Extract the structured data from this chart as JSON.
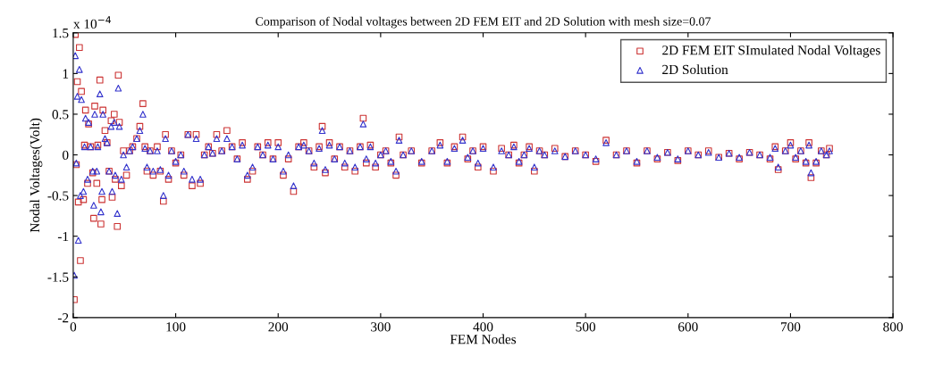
{
  "chart_data": {
    "type": "scatter",
    "title": "Comparison of Nodal voltages between 2D FEM EIT and 2D Solution with mesh size=0.07",
    "xlabel": "FEM Nodes",
    "ylabel": "Nodal Voltages(Volt)",
    "annotations": [
      "x 10$^{−4}$"
    ],
    "x": [
      1,
      2,
      3,
      4,
      5,
      6,
      7,
      8,
      10,
      11,
      12,
      14,
      15,
      17,
      19,
      20,
      21,
      23,
      24,
      26,
      27,
      28,
      29,
      31,
      33,
      35,
      37,
      38,
      40,
      41,
      43,
      44,
      45,
      47,
      49,
      52,
      55,
      58,
      62,
      65,
      68,
      70,
      72,
      75,
      78,
      82,
      85,
      88,
      90,
      93,
      96,
      100,
      105,
      108,
      112,
      116,
      120,
      124,
      128,
      132,
      136,
      140,
      145,
      150,
      155,
      160,
      165,
      170,
      175,
      180,
      185,
      190,
      195,
      200,
      205,
      210,
      215,
      220,
      225,
      230,
      235,
      240,
      243,
      246,
      250,
      255,
      260,
      265,
      270,
      275,
      280,
      283,
      286,
      290,
      295,
      300,
      305,
      310,
      315,
      318,
      322,
      330,
      340,
      350,
      358,
      365,
      372,
      380,
      385,
      390,
      395,
      400,
      410,
      418,
      425,
      430,
      435,
      440,
      445,
      450,
      455,
      460,
      470,
      480,
      490,
      500,
      510,
      520,
      530,
      540,
      550,
      560,
      570,
      580,
      590,
      600,
      610,
      620,
      630,
      640,
      650,
      660,
      670,
      680,
      685,
      688,
      695,
      700,
      705,
      710,
      715,
      718,
      720,
      725,
      730,
      735,
      738
    ],
    "series": [
      {
        "name": "2D FEM EIT SImulated Nodal Voltages",
        "color": "#cc3333",
        "marker": "square",
        "values": [
          -1.78,
          1.48,
          -0.12,
          0.9,
          -0.58,
          1.32,
          -1.3,
          0.78,
          -0.55,
          0.12,
          0.55,
          -0.35,
          0.38,
          0.1,
          -0.22,
          -0.78,
          0.6,
          -0.35,
          0.12,
          0.92,
          -0.85,
          -0.55,
          0.55,
          0.3,
          0.15,
          -0.2,
          0.42,
          -0.52,
          0.5,
          -0.3,
          -0.88,
          0.98,
          0.4,
          -0.38,
          0.05,
          -0.25,
          0.05,
          0.1,
          0.2,
          0.35,
          0.63,
          0.1,
          -0.2,
          0.05,
          -0.25,
          0.1,
          -0.2,
          -0.57,
          0.25,
          -0.3,
          0.05,
          -0.1,
          0.0,
          -0.25,
          0.25,
          -0.38,
          0.25,
          -0.35,
          0.0,
          0.1,
          0.02,
          0.25,
          0.05,
          0.3,
          0.1,
          -0.05,
          0.15,
          -0.3,
          -0.2,
          0.1,
          0.0,
          0.15,
          -0.05,
          0.15,
          -0.25,
          -0.05,
          -0.45,
          0.1,
          0.15,
          0.05,
          -0.15,
          0.1,
          0.35,
          -0.22,
          0.15,
          -0.05,
          0.1,
          -0.15,
          0.05,
          -0.2,
          0.1,
          0.45,
          -0.1,
          0.12,
          -0.15,
          0.0,
          0.05,
          -0.1,
          -0.25,
          0.22,
          0.0,
          0.05,
          -0.1,
          0.05,
          0.15,
          -0.1,
          0.1,
          0.22,
          -0.05,
          0.05,
          -0.15,
          0.1,
          -0.2,
          0.08,
          0.0,
          0.12,
          -0.1,
          0.0,
          0.1,
          -0.2,
          0.05,
          0.0,
          0.08,
          -0.02,
          0.05,
          0.0,
          -0.08,
          0.18,
          0.0,
          0.05,
          -0.1,
          0.05,
          -0.05,
          0.03,
          -0.07,
          0.05,
          0.0,
          0.05,
          -0.03,
          0.02,
          -0.05,
          0.03,
          0.0,
          -0.05,
          0.1,
          -0.18,
          0.05,
          0.15,
          -0.05,
          0.05,
          -0.1,
          0.15,
          -0.28,
          -0.1,
          0.05,
          0.0,
          0.08
        ]
      },
      {
        "name": "2D Solution",
        "color": "#3333cc",
        "marker": "triangle",
        "values": [
          -1.48,
          1.22,
          -0.1,
          0.72,
          -1.05,
          1.05,
          -0.5,
          0.68,
          -0.45,
          0.1,
          0.45,
          -0.3,
          0.4,
          0.1,
          -0.2,
          -0.62,
          0.5,
          -0.2,
          0.1,
          0.75,
          -0.7,
          -0.45,
          0.5,
          0.2,
          0.15,
          -0.2,
          0.35,
          -0.45,
          0.4,
          -0.25,
          -0.72,
          0.82,
          0.35,
          -0.3,
          0.0,
          -0.15,
          0.05,
          0.1,
          0.2,
          0.3,
          0.5,
          0.08,
          -0.15,
          0.05,
          -0.2,
          0.05,
          -0.18,
          -0.5,
          0.2,
          -0.25,
          0.05,
          -0.08,
          0.0,
          -0.2,
          0.25,
          -0.3,
          0.2,
          -0.3,
          0.0,
          0.1,
          0.02,
          0.2,
          0.05,
          0.2,
          0.1,
          -0.05,
          0.12,
          -0.25,
          -0.15,
          0.1,
          0.0,
          0.12,
          -0.05,
          0.1,
          -0.2,
          0.0,
          -0.38,
          0.1,
          0.12,
          0.05,
          -0.1,
          0.08,
          0.3,
          -0.18,
          0.12,
          -0.05,
          0.1,
          -0.1,
          0.05,
          -0.15,
          0.1,
          0.38,
          -0.05,
          0.1,
          -0.1,
          0.0,
          0.05,
          -0.08,
          -0.2,
          0.18,
          0.0,
          0.05,
          -0.08,
          0.05,
          0.12,
          -0.08,
          0.08,
          0.18,
          -0.03,
          0.05,
          -0.1,
          0.08,
          -0.15,
          0.05,
          0.0,
          0.1,
          -0.08,
          0.0,
          0.08,
          -0.15,
          0.05,
          0.0,
          0.05,
          -0.02,
          0.05,
          0.0,
          -0.05,
          0.15,
          0.0,
          0.05,
          -0.08,
          0.05,
          -0.03,
          0.03,
          -0.05,
          0.05,
          0.0,
          0.03,
          -0.03,
          0.02,
          -0.03,
          0.03,
          0.0,
          -0.03,
          0.08,
          -0.15,
          0.05,
          0.12,
          -0.03,
          0.05,
          -0.08,
          0.12,
          -0.22,
          -0.08,
          0.05,
          0.0,
          0.05
        ]
      }
    ],
    "xlim": [
      0,
      800
    ],
    "xticks": [
      0,
      100,
      200,
      300,
      400,
      500,
      600,
      700,
      800
    ],
    "ylim": [
      -2,
      1.5
    ],
    "yticks": [
      -2,
      -1.5,
      -1,
      -0.5,
      0,
      0.5,
      1,
      1.5
    ],
    "grid": false,
    "legend": "top right"
  }
}
